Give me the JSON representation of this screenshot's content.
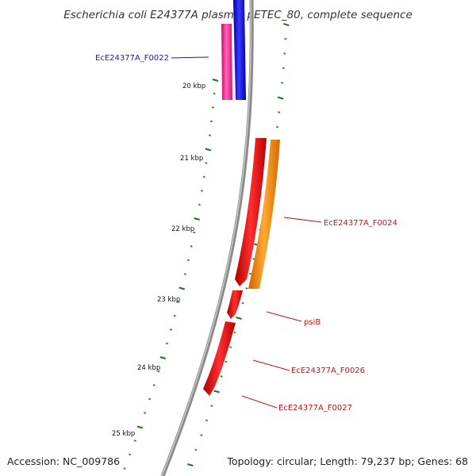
{
  "title": "Escherichia coli E24377A plasmid pETEC_80, complete sequence",
  "accession_text": "Accession: NC_009786",
  "summary_text": "Topology: circular; Length: 79,237 bp; Genes: 68",
  "scale": {
    "labels": [
      "20 kbp",
      "21 kbp",
      "22 kbp",
      "23 kbp",
      "24 kbp",
      "25 kbp"
    ]
  },
  "genes": [
    {
      "label": "EcE24377A_F0022",
      "color": "#1010e0",
      "strand": "forward"
    },
    {
      "label": "EcE24377A_F0024",
      "color": "#dd1111",
      "strand": "forward"
    },
    {
      "label": "psiB",
      "color": "#dd1111",
      "strand": "reverse"
    },
    {
      "label": "EcE24377A_F0026",
      "color": "#dd1111",
      "strand": "reverse"
    },
    {
      "label": "EcE24377A_F0027",
      "color": "#dd1111",
      "strand": "reverse"
    }
  ],
  "colors": {
    "backbone": "#8a8a8a",
    "tick_major": "#1a7a1a",
    "tick_minor": "#2a8a2a",
    "forward_gene": "#1010e0",
    "reverse_gene": "#ee1111",
    "pink_feature": "#ff3399",
    "orange_feature": "#ff8c00",
    "label_forward": "#1a1aaa",
    "label_reverse": "#cc1111"
  }
}
